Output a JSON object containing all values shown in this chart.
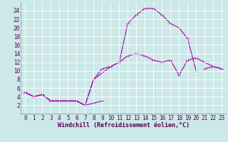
{
  "xlabel": "Windchill (Refroidissement éolien,°C)",
  "xlim": [
    -0.5,
    23.5
  ],
  "ylim": [
    0,
    26
  ],
  "xticks": [
    0,
    1,
    2,
    3,
    4,
    5,
    6,
    7,
    8,
    9,
    10,
    11,
    12,
    13,
    14,
    15,
    16,
    17,
    18,
    19,
    20,
    21,
    22,
    23
  ],
  "yticks": [
    2,
    4,
    6,
    8,
    10,
    12,
    14,
    16,
    18,
    20,
    22,
    24
  ],
  "bg_color": "#cce8e8",
  "grid_color": "#aacccc",
  "line_color": "#aa00aa",
  "line1": {
    "x": [
      0,
      1,
      2,
      3,
      4,
      5,
      6,
      7,
      8,
      9
    ],
    "y": [
      5,
      4,
      4.5,
      3,
      3,
      3,
      3,
      2,
      2.5,
      3
    ]
  },
  "line2": {
    "x": [
      0,
      1,
      2,
      3,
      4,
      5,
      6,
      7,
      8,
      10,
      11,
      12,
      13,
      14,
      15,
      16,
      17,
      18,
      19,
      20,
      21,
      22,
      23
    ],
    "y": [
      5,
      4,
      4.5,
      3,
      3,
      3,
      3,
      2,
      8,
      11,
      12,
      13.5,
      14,
      13.5,
      12.5,
      12,
      12.5,
      9,
      12.5,
      13,
      12,
      11,
      10.5
    ]
  },
  "line3": {
    "x": [
      0,
      1,
      2,
      3,
      4,
      5,
      6,
      7,
      8,
      9,
      10,
      11,
      12,
      13,
      14,
      15,
      16,
      17,
      18,
      19,
      20
    ],
    "y": [
      5,
      4,
      4.5,
      3,
      3,
      3,
      3,
      2,
      8,
      10.5,
      11,
      12,
      21,
      23,
      24.5,
      24.5,
      23,
      21,
      20,
      17.5,
      10
    ]
  },
  "line4": {
    "x": [
      21,
      22,
      23
    ],
    "y": [
      10.5,
      11,
      10.5
    ]
  },
  "tick_fontsize": 5.5,
  "xlabel_fontsize": 6,
  "marker_size": 3
}
